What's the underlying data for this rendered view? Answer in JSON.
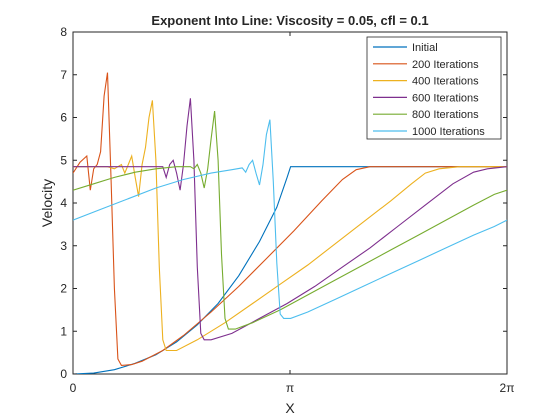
{
  "chart_data": {
    "type": "line",
    "title": "Exponent Into Line: Viscosity = 0.05, cfl = 0.1",
    "xlabel": "X",
    "ylabel": "Velocity",
    "xlim": [
      0,
      6.2832
    ],
    "ylim": [
      0,
      8
    ],
    "xticks": [
      {
        "value": 0,
        "label": "0"
      },
      {
        "value": 3.1416,
        "label": "π"
      },
      {
        "value": 6.2832,
        "label": "2π"
      }
    ],
    "yticks": [
      0,
      1,
      2,
      3,
      4,
      5,
      6,
      7,
      8
    ],
    "grid": false,
    "legend_position": "top-right",
    "series": [
      {
        "name": "Initial",
        "color": "#0072BD",
        "points": [
          [
            0.0,
            0.0
          ],
          [
            0.3,
            0.02
          ],
          [
            0.6,
            0.1
          ],
          [
            0.9,
            0.25
          ],
          [
            1.2,
            0.45
          ],
          [
            1.5,
            0.75
          ],
          [
            1.8,
            1.15
          ],
          [
            2.1,
            1.65
          ],
          [
            2.4,
            2.3
          ],
          [
            2.7,
            3.1
          ],
          [
            2.95,
            3.9
          ],
          [
            3.1,
            4.6
          ],
          [
            3.15,
            4.85
          ],
          [
            3.5,
            4.85
          ],
          [
            4.5,
            4.85
          ],
          [
            5.5,
            4.85
          ],
          [
            6.2832,
            4.85
          ]
        ]
      },
      {
        "name": "200 Iterations",
        "color": "#D95319",
        "points": [
          [
            0.0,
            4.7
          ],
          [
            0.1,
            4.95
          ],
          [
            0.2,
            5.1
          ],
          [
            0.25,
            4.3
          ],
          [
            0.3,
            4.8
          ],
          [
            0.35,
            4.9
          ],
          [
            0.4,
            5.2
          ],
          [
            0.45,
            6.5
          ],
          [
            0.5,
            7.05
          ],
          [
            0.55,
            4.6
          ],
          [
            0.6,
            2.0
          ],
          [
            0.65,
            0.35
          ],
          [
            0.7,
            0.2
          ],
          [
            0.85,
            0.22
          ],
          [
            1.0,
            0.3
          ],
          [
            1.3,
            0.55
          ],
          [
            1.6,
            0.9
          ],
          [
            2.0,
            1.45
          ],
          [
            2.4,
            2.05
          ],
          [
            2.8,
            2.7
          ],
          [
            3.2,
            3.35
          ],
          [
            3.6,
            4.05
          ],
          [
            3.9,
            4.55
          ],
          [
            4.1,
            4.78
          ],
          [
            4.3,
            4.85
          ],
          [
            5.0,
            4.85
          ],
          [
            6.0,
            4.85
          ],
          [
            6.2832,
            4.85
          ]
        ]
      },
      {
        "name": "400 Iterations",
        "color": "#EDB120",
        "points": [
          [
            0.0,
            4.85
          ],
          [
            0.5,
            4.85
          ],
          [
            0.6,
            4.8
          ],
          [
            0.7,
            4.9
          ],
          [
            0.75,
            4.7
          ],
          [
            0.8,
            4.9
          ],
          [
            0.85,
            5.1
          ],
          [
            0.9,
            4.6
          ],
          [
            0.95,
            4.15
          ],
          [
            1.0,
            4.9
          ],
          [
            1.05,
            5.3
          ],
          [
            1.1,
            6.0
          ],
          [
            1.15,
            6.4
          ],
          [
            1.2,
            5.0
          ],
          [
            1.25,
            2.5
          ],
          [
            1.3,
            0.8
          ],
          [
            1.35,
            0.55
          ],
          [
            1.5,
            0.55
          ],
          [
            1.8,
            0.8
          ],
          [
            2.2,
            1.2
          ],
          [
            2.6,
            1.65
          ],
          [
            3.0,
            2.1
          ],
          [
            3.4,
            2.55
          ],
          [
            3.8,
            3.05
          ],
          [
            4.2,
            3.55
          ],
          [
            4.6,
            4.05
          ],
          [
            4.9,
            4.45
          ],
          [
            5.1,
            4.7
          ],
          [
            5.3,
            4.8
          ],
          [
            5.6,
            4.85
          ],
          [
            6.0,
            4.85
          ],
          [
            6.2832,
            4.85
          ]
        ]
      },
      {
        "name": "600 Iterations",
        "color": "#7E2F8E",
        "points": [
          [
            0.0,
            4.85
          ],
          [
            1.0,
            4.85
          ],
          [
            1.3,
            4.85
          ],
          [
            1.35,
            4.6
          ],
          [
            1.4,
            4.9
          ],
          [
            1.45,
            5.0
          ],
          [
            1.5,
            4.7
          ],
          [
            1.55,
            4.3
          ],
          [
            1.6,
            4.9
          ],
          [
            1.65,
            5.8
          ],
          [
            1.7,
            6.45
          ],
          [
            1.75,
            5.0
          ],
          [
            1.8,
            2.5
          ],
          [
            1.85,
            0.95
          ],
          [
            1.9,
            0.8
          ],
          [
            2.0,
            0.8
          ],
          [
            2.3,
            0.95
          ],
          [
            2.7,
            1.3
          ],
          [
            3.1,
            1.65
          ],
          [
            3.5,
            2.05
          ],
          [
            3.9,
            2.5
          ],
          [
            4.3,
            2.95
          ],
          [
            4.7,
            3.45
          ],
          [
            5.1,
            3.95
          ],
          [
            5.5,
            4.45
          ],
          [
            5.8,
            4.72
          ],
          [
            6.0,
            4.8
          ],
          [
            6.2832,
            4.85
          ]
        ]
      },
      {
        "name": "800 Iterations",
        "color": "#77AC30",
        "points": [
          [
            0.0,
            4.3
          ],
          [
            0.3,
            4.45
          ],
          [
            0.6,
            4.6
          ],
          [
            0.9,
            4.72
          ],
          [
            1.2,
            4.8
          ],
          [
            1.5,
            4.85
          ],
          [
            1.7,
            4.85
          ],
          [
            1.75,
            4.8
          ],
          [
            1.8,
            4.9
          ],
          [
            1.85,
            4.7
          ],
          [
            1.9,
            4.35
          ],
          [
            1.95,
            4.8
          ],
          [
            2.0,
            5.5
          ],
          [
            2.05,
            6.15
          ],
          [
            2.1,
            5.0
          ],
          [
            2.15,
            2.8
          ],
          [
            2.2,
            1.3
          ],
          [
            2.25,
            1.05
          ],
          [
            2.35,
            1.05
          ],
          [
            2.6,
            1.2
          ],
          [
            3.0,
            1.5
          ],
          [
            3.4,
            1.85
          ],
          [
            3.8,
            2.2
          ],
          [
            4.2,
            2.55
          ],
          [
            4.6,
            2.9
          ],
          [
            5.0,
            3.25
          ],
          [
            5.4,
            3.6
          ],
          [
            5.8,
            3.95
          ],
          [
            6.1,
            4.2
          ],
          [
            6.2832,
            4.3
          ]
        ]
      },
      {
        "name": "1000 Iterations",
        "color": "#4DBEEE",
        "points": [
          [
            0.0,
            3.6
          ],
          [
            0.4,
            3.85
          ],
          [
            0.8,
            4.1
          ],
          [
            1.2,
            4.35
          ],
          [
            1.6,
            4.55
          ],
          [
            2.0,
            4.7
          ],
          [
            2.3,
            4.78
          ],
          [
            2.45,
            4.82
          ],
          [
            2.5,
            4.72
          ],
          [
            2.55,
            4.9
          ],
          [
            2.6,
            5.0
          ],
          [
            2.65,
            4.7
          ],
          [
            2.7,
            4.42
          ],
          [
            2.75,
            4.9
          ],
          [
            2.8,
            5.6
          ],
          [
            2.85,
            5.95
          ],
          [
            2.9,
            4.5
          ],
          [
            2.95,
            2.6
          ],
          [
            3.0,
            1.4
          ],
          [
            3.05,
            1.3
          ],
          [
            3.15,
            1.3
          ],
          [
            3.4,
            1.45
          ],
          [
            3.8,
            1.75
          ],
          [
            4.2,
            2.05
          ],
          [
            4.6,
            2.35
          ],
          [
            5.0,
            2.65
          ],
          [
            5.4,
            2.95
          ],
          [
            5.8,
            3.25
          ],
          [
            6.1,
            3.45
          ],
          [
            6.2832,
            3.6
          ]
        ]
      }
    ]
  }
}
